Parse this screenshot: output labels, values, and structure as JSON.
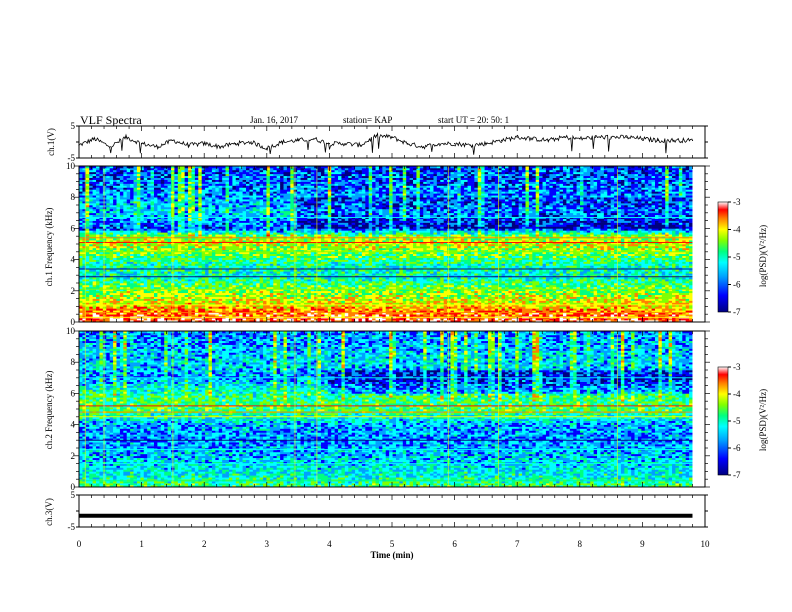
{
  "header": {
    "title": "VLF Spectra",
    "date": "Jan. 16, 2017",
    "station": "station= KAP",
    "start": "start  UT =   20: 50: 1"
  },
  "colors": {
    "trace": "#000000",
    "colormap": [
      "#000080",
      "#0000ff",
      "#00a0ff",
      "#00ffff",
      "#00ff80",
      "#80ff00",
      "#ffff00",
      "#ff8000",
      "#ff0000",
      "#ffffff"
    ]
  },
  "chart_data": [
    {
      "type": "line",
      "panel": "ch1-waveform",
      "ylabel": "ch.1(V)",
      "ylim": [
        -5,
        5
      ],
      "yticks": [
        "5",
        "-5"
      ],
      "xlim": [
        0,
        10
      ],
      "x": [
        0,
        0.25,
        0.5,
        0.75,
        1.0,
        1.25,
        1.5,
        1.75,
        2.0,
        2.25,
        2.5,
        2.75,
        3.0,
        3.25,
        3.5,
        3.75,
        4.0,
        4.25,
        4.5,
        4.75,
        5.0,
        5.25,
        5.5,
        5.75,
        6.0,
        6.25,
        6.5,
        6.75,
        7.0,
        7.25,
        7.5,
        7.75,
        8.0,
        8.25,
        8.5,
        8.75,
        9.0,
        9.25,
        9.5,
        9.8
      ],
      "y": [
        -1,
        1,
        -1.5,
        1.5,
        -0.5,
        -1.5,
        0.5,
        -1,
        -0.5,
        -1.5,
        -0.5,
        0,
        -2,
        0,
        0.5,
        1,
        -0.5,
        -0.5,
        -1,
        2,
        1.5,
        -0.5,
        -1.5,
        -0.5,
        -0.5,
        -1,
        -0.5,
        0.5,
        1.5,
        1,
        0.5,
        1.5,
        1,
        1.5,
        1.5,
        1.5,
        1,
        0.5,
        0.5,
        0.5
      ]
    },
    {
      "type": "heatmap",
      "panel": "ch1-spectrogram",
      "ylabel": "ch.1 Frequency (kHz)",
      "ylim": [
        0,
        10
      ],
      "xlim": [
        0,
        10
      ],
      "yticks": [
        "0",
        "2",
        "4",
        "6",
        "8",
        "10"
      ],
      "colorbar_label": "log(PSD)(V²/Hz)",
      "colorbar_ticks": [
        "-3",
        "-4",
        "-5",
        "-6",
        "-7"
      ],
      "clim": [
        -7,
        -3
      ],
      "description_profile_khz": [
        0,
        0.5,
        1,
        2,
        3,
        4,
        5,
        5.5,
        6,
        7,
        8,
        9,
        10
      ],
      "profile_logpsd": [
        -3.5,
        -3.8,
        -4.3,
        -4.8,
        -5.5,
        -5.2,
        -4.5,
        -4.8,
        -6.3,
        -5.7,
        -6.0,
        -6.2,
        -6.3
      ]
    },
    {
      "type": "heatmap",
      "panel": "ch2-spectrogram",
      "ylabel": "ch.2 Frequency (kHz)",
      "ylim": [
        0,
        10
      ],
      "xlim": [
        0,
        10
      ],
      "yticks": [
        "0",
        "2",
        "4",
        "6",
        "8",
        "10"
      ],
      "colorbar_label": "log(PSD)(V²/Hz)",
      "colorbar_ticks": [
        "-3",
        "-4",
        "-5",
        "-6",
        "-7"
      ],
      "clim": [
        -7,
        -3
      ],
      "description_profile_khz": [
        0,
        0.5,
        1,
        2,
        3,
        4,
        5,
        6,
        7,
        8,
        9,
        10
      ],
      "profile_logpsd": [
        -5.0,
        -5.4,
        -5.6,
        -5.8,
        -6.0,
        -5.9,
        -5.0,
        -5.3,
        -6.0,
        -5.7,
        -5.9,
        -6.0
      ]
    },
    {
      "type": "line",
      "panel": "ch3-waveform",
      "ylabel": "ch.3(V)",
      "ylim": [
        -5,
        5
      ],
      "yticks": [
        "5",
        "-5"
      ],
      "xlim": [
        0,
        10
      ],
      "x": [
        0,
        9.8
      ],
      "y": [
        -1.5,
        -1.5
      ],
      "xlabel": "Time (min)",
      "xticks": [
        "0",
        "1",
        "2",
        "3",
        "4",
        "5",
        "6",
        "7",
        "8",
        "9",
        "10"
      ]
    }
  ]
}
